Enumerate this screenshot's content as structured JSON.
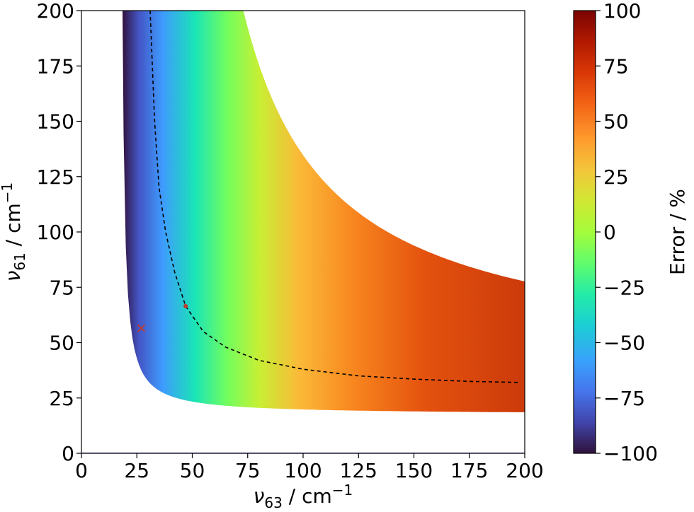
{
  "chart_data": {
    "type": "heatmap",
    "title": "",
    "xlabel": {
      "symbol": "ν",
      "subscript": "63",
      "unit": " / cm",
      "superscript": "−1"
    },
    "ylabel": {
      "symbol": "ν",
      "subscript": "61",
      "unit": " / cm",
      "superscript": "−1"
    },
    "xlim": [
      0,
      200
    ],
    "ylim": [
      0,
      200
    ],
    "x_ticks": [
      "0",
      "25",
      "50",
      "75",
      "100",
      "125",
      "150",
      "175",
      "200"
    ],
    "y_ticks": [
      "0",
      "25",
      "50",
      "75",
      "100",
      "125",
      "150",
      "175",
      "200"
    ],
    "colorbar": {
      "label": "Error / %",
      "range": [
        -100,
        100
      ],
      "ticks": [
        "100",
        "75",
        "50",
        "25",
        "0",
        "−25",
        "−50",
        "−75",
        "−100"
      ],
      "colormap": "turbo"
    },
    "dashed_curve": [
      [
        31,
        200
      ],
      [
        33,
        150
      ],
      [
        35,
        120
      ],
      [
        38,
        100
      ],
      [
        42,
        82
      ],
      [
        47,
        66.5
      ],
      [
        55,
        55
      ],
      [
        65,
        48
      ],
      [
        80,
        42
      ],
      [
        100,
        38
      ],
      [
        125,
        35
      ],
      [
        150,
        33.5
      ],
      [
        175,
        32.5
      ],
      [
        198,
        32
      ]
    ],
    "markers": [
      {
        "type": "point",
        "x": 47,
        "y": 66.5,
        "color": "#c0392b"
      },
      {
        "type": "cross",
        "x": 27,
        "y": 56.5,
        "color": "#c0392b"
      }
    ],
    "grid": false
  }
}
